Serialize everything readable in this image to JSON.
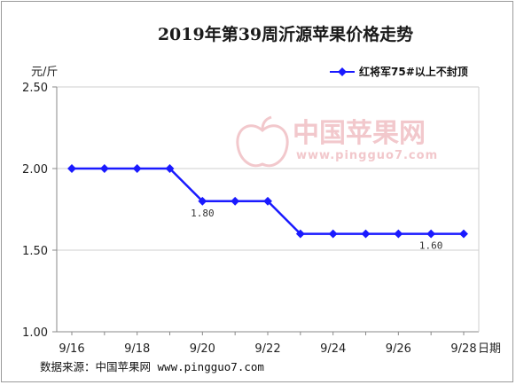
{
  "chart_data": {
    "type": "line",
    "title": "2019年第39周沂源苹果价格走势",
    "ylabel": "元/斤",
    "xlabel": "日期",
    "ylim": [
      1.0,
      2.5
    ],
    "yticks": [
      "1.00",
      "1.50",
      "2.00",
      "2.50"
    ],
    "ytick_values": [
      1.0,
      1.5,
      2.0,
      2.5
    ],
    "categories": [
      "9/16",
      "9/17",
      "9/18",
      "9/19",
      "9/20",
      "9/21",
      "9/22",
      "9/23",
      "9/24",
      "9/25",
      "9/26",
      "9/27",
      "9/28"
    ],
    "xtick_labels": [
      "9/16",
      "",
      "9/18",
      "",
      "9/20",
      "",
      "9/22",
      "",
      "9/24",
      "",
      "9/26",
      "",
      "9/28"
    ],
    "series": [
      {
        "name": "红将军75#以上不封顶",
        "color": "#1a1aff",
        "values": [
          2.0,
          2.0,
          2.0,
          2.0,
          1.8,
          1.8,
          1.8,
          1.6,
          1.6,
          1.6,
          1.6,
          1.6,
          1.6
        ]
      }
    ],
    "annotations": [
      {
        "text": "1.80",
        "category": "9/20"
      },
      {
        "text": "1.60",
        "category": "9/27"
      }
    ],
    "grid": true,
    "legend_position": "top-right"
  },
  "watermark": {
    "cn": "中国苹果网",
    "url": "www.pingguo7.com"
  },
  "source": "数据来源：中国苹果网 www.pingguo7.com"
}
